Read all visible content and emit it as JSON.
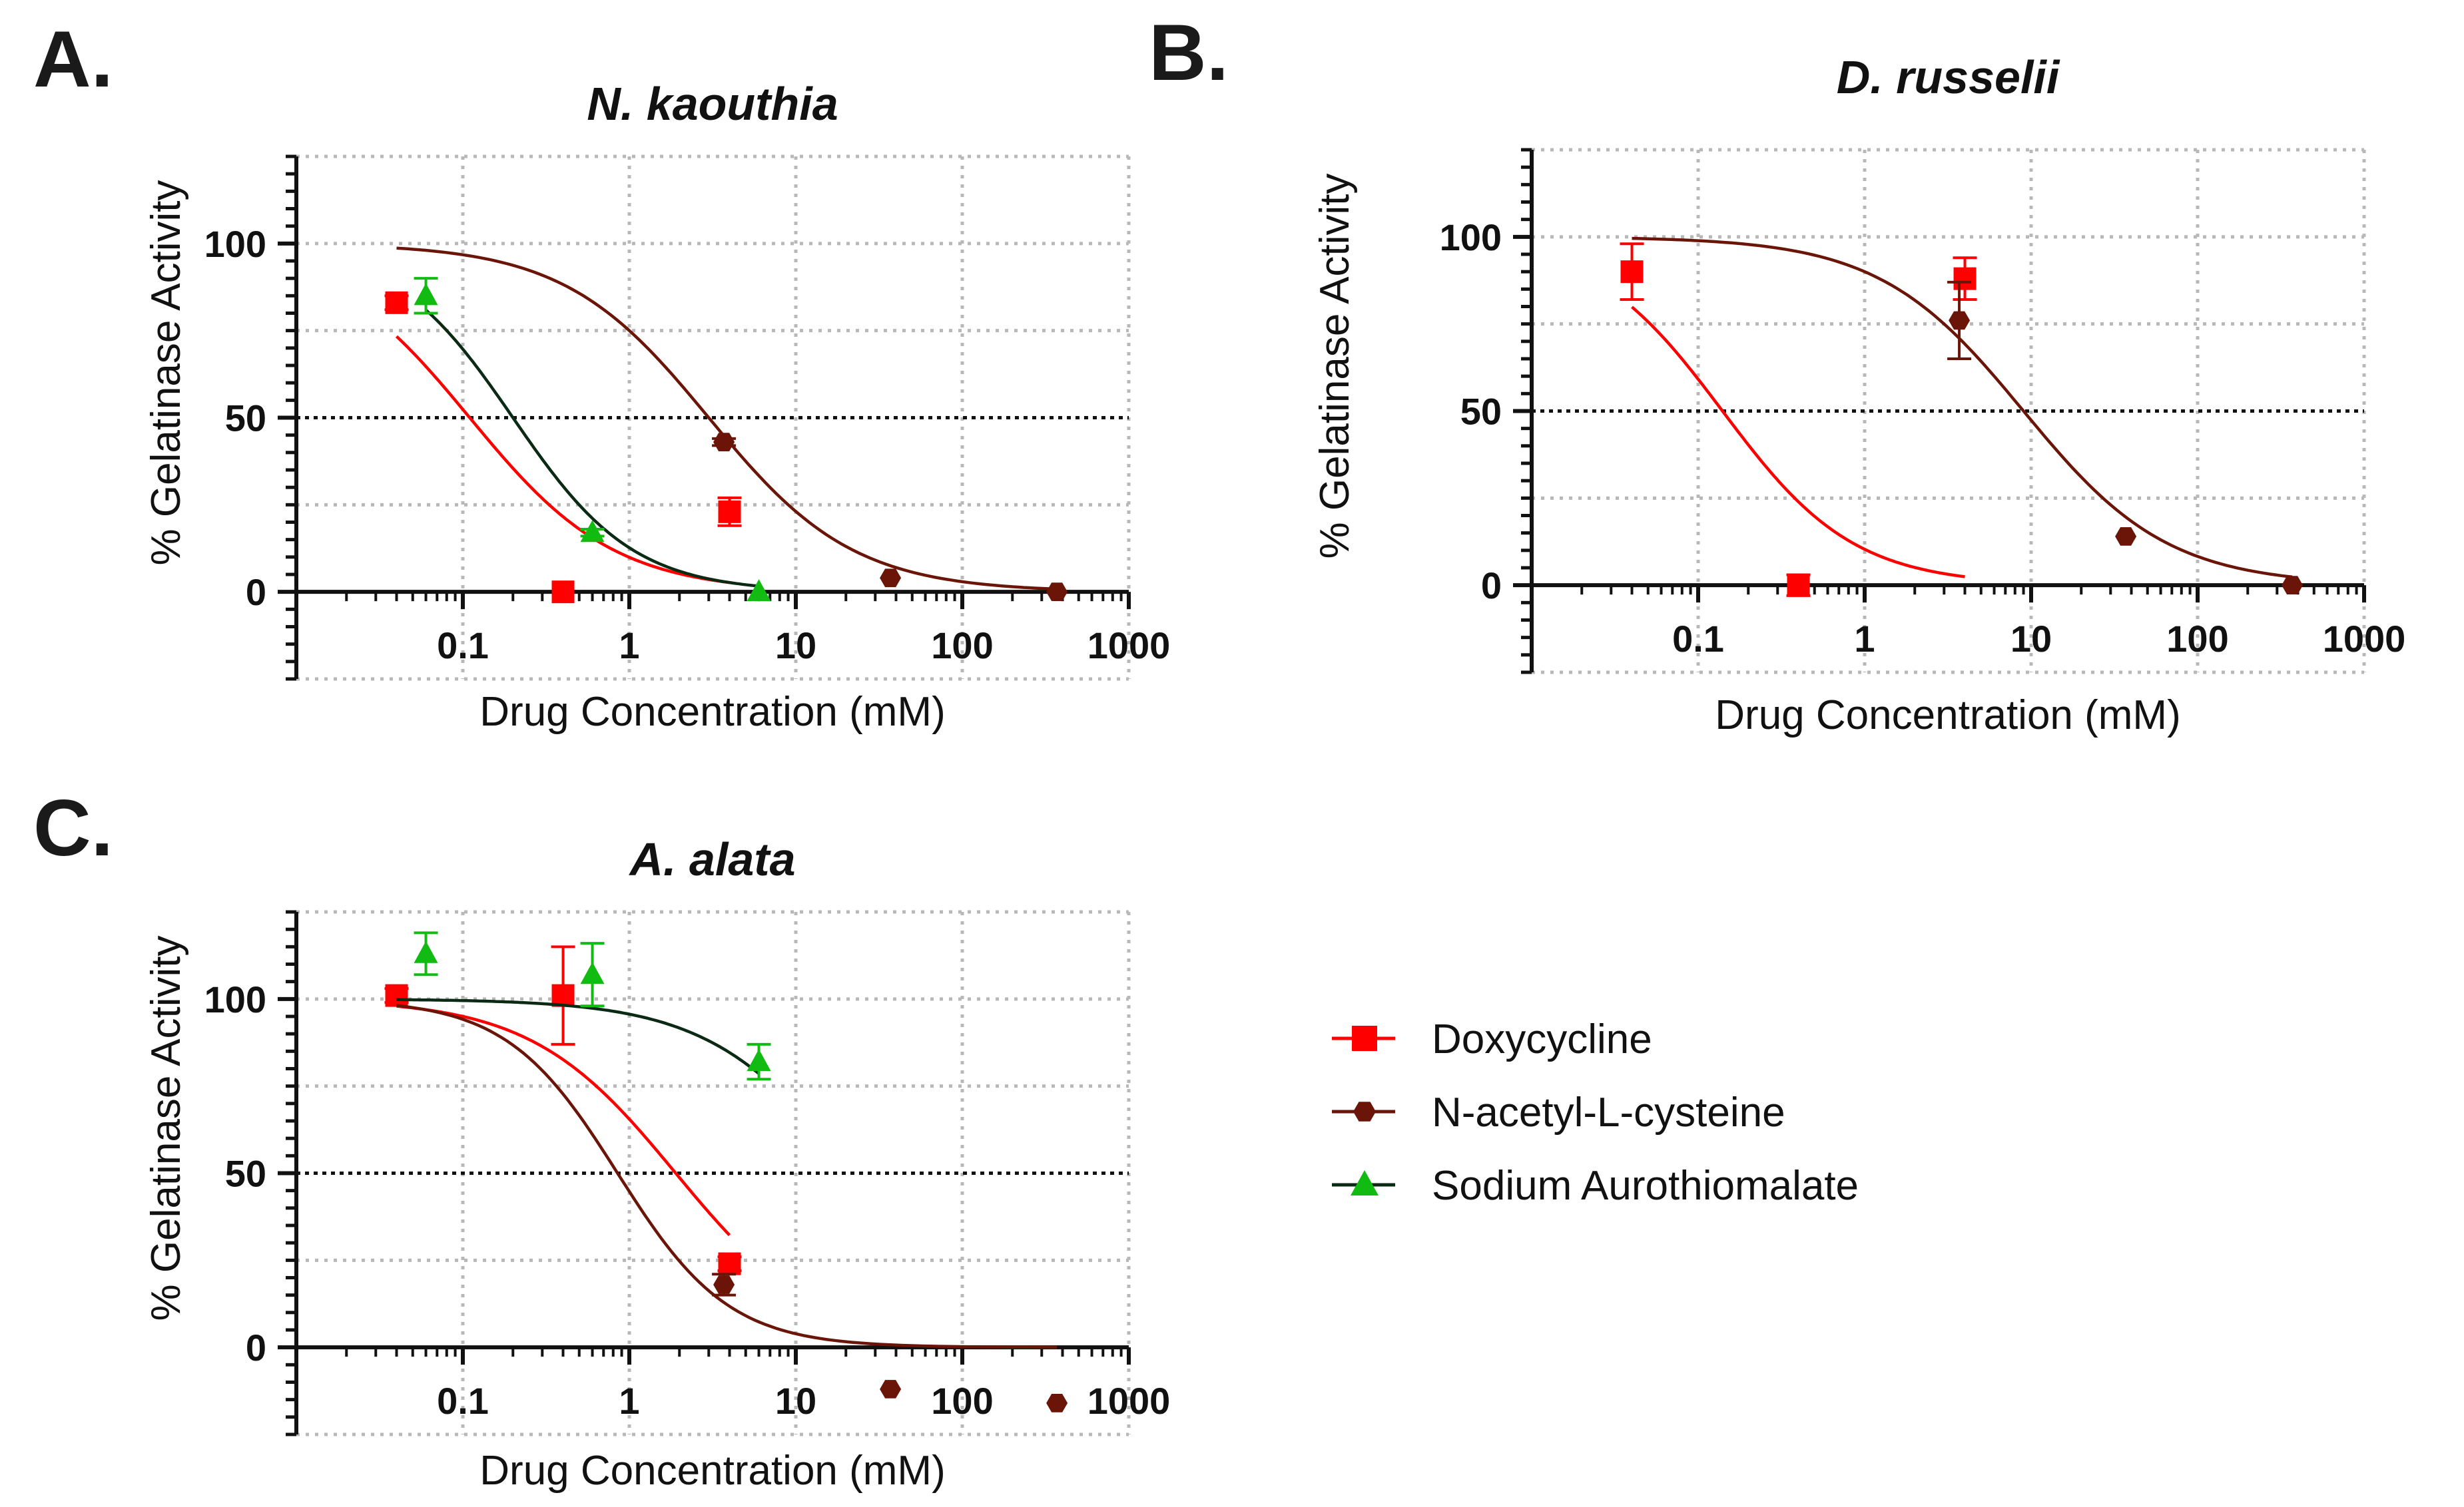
{
  "panels": [
    {
      "letter": "A.",
      "title": "N. kaouthia",
      "xlabel": "Drug Concentration (mM)",
      "ylabel": "% Gelatinase Activity"
    },
    {
      "letter": "B.",
      "title": "D. russelii",
      "xlabel": "Drug Concentration (mM)",
      "ylabel": "% Gelatinase Activity"
    },
    {
      "letter": "C.",
      "title": "A. alata",
      "xlabel": "Drug Concentration (mM)",
      "ylabel": "% Gelatinase Activity"
    }
  ],
  "legend": [
    {
      "label": "Doxycycline",
      "color": "#ff0000",
      "marker": "square"
    },
    {
      "label": "N-acetyl-L-cysteine",
      "color": "#6b1408",
      "marker": "hexagon"
    },
    {
      "label": "Sodium Aurothiomalate",
      "color": "#11bb11",
      "marker": "triangle"
    }
  ],
  "chart_data": [
    {
      "type": "scatter",
      "panel": "A.",
      "title": "N. kaouthia",
      "xlabel": "Drug Concentration (mM)",
      "ylabel": "% Gelatinase Activity",
      "xscale": "log",
      "xlim": [
        0.01,
        1000
      ],
      "ylim": [
        -25,
        125
      ],
      "xticks": [
        "0.1",
        "1",
        "10",
        "100",
        "1000"
      ],
      "yticks": [
        "0",
        "50",
        "100"
      ],
      "reference_line_y": 50,
      "series": [
        {
          "name": "Doxycycline",
          "color": "#ff0000",
          "curve_color": "#ff0000",
          "marker": "square",
          "points": [
            {
              "x": 0.04,
              "y": 83,
              "err": 2
            },
            {
              "x": 0.4,
              "y": 0,
              "err": 0
            },
            {
              "x": 4,
              "y": 23,
              "err": 4
            }
          ],
          "curve": {
            "ic50": 0.11,
            "hill": 1.0,
            "top": 100,
            "bottom": 0,
            "x_start": 0.04,
            "x_end": 4
          }
        },
        {
          "name": "N-acetyl-L-cysteine",
          "color": "#6b1408",
          "curve_color": "#6b1408",
          "marker": "hexagon",
          "points": [
            {
              "x": 3.7,
              "y": 43,
              "err": 1
            },
            {
              "x": 37,
              "y": 4,
              "err": 0
            },
            {
              "x": 370,
              "y": 0,
              "err": 0
            }
          ],
          "curve": {
            "ic50": 3.0,
            "hill": 1.0,
            "top": 100,
            "bottom": 0,
            "x_start": 0.04,
            "x_end": 370
          }
        },
        {
          "name": "Sodium Aurothiomalate",
          "color": "#11bb11",
          "curve_color": "#0b2a14",
          "marker": "triangle",
          "points": [
            {
              "x": 0.06,
              "y": 85,
              "err": 5
            },
            {
              "x": 0.6,
              "y": 17,
              "err": 1
            },
            {
              "x": 6,
              "y": 0,
              "err": 0
            }
          ],
          "curve": {
            "ic50": 0.2,
            "hill": 1.2,
            "top": 100,
            "bottom": 0,
            "x_start": 0.06,
            "x_end": 6
          }
        }
      ]
    },
    {
      "type": "scatter",
      "panel": "B.",
      "title": "D. russelii",
      "xlabel": "Drug Concentration (mM)",
      "ylabel": "% Gelatinase Activity",
      "xscale": "log",
      "xlim": [
        0.01,
        1000
      ],
      "ylim": [
        -25,
        125
      ],
      "xticks": [
        "0.1",
        "1",
        "10",
        "100",
        "1000"
      ],
      "yticks": [
        "0",
        "50",
        "100"
      ],
      "reference_line_y": 50,
      "series": [
        {
          "name": "Doxycycline",
          "color": "#ff0000",
          "curve_color": "#ff0000",
          "marker": "square",
          "points": [
            {
              "x": 0.04,
              "y": 90,
              "err": 8
            },
            {
              "x": 0.4,
              "y": 0,
              "err": 3
            },
            {
              "x": 4,
              "y": 88,
              "err": 6
            }
          ],
          "curve": {
            "ic50": 0.14,
            "hill": 1.1,
            "top": 100,
            "bottom": 0,
            "x_start": 0.04,
            "x_end": 4
          }
        },
        {
          "name": "N-acetyl-L-cysteine",
          "color": "#6b1408",
          "curve_color": "#6b1408",
          "marker": "hexagon",
          "points": [
            {
              "x": 3.7,
              "y": 76,
              "err": 11
            },
            {
              "x": 37,
              "y": 14,
              "err": 0
            },
            {
              "x": 370,
              "y": 0,
              "err": 0
            }
          ],
          "curve": {
            "ic50": 9.0,
            "hill": 1.0,
            "top": 100,
            "bottom": 0,
            "x_start": 0.04,
            "x_end": 370
          }
        }
      ]
    },
    {
      "type": "scatter",
      "panel": "C.",
      "title": "A. alata",
      "xlabel": "Drug Concentration (mM)",
      "ylabel": "% Gelatinase Activity",
      "xscale": "log",
      "xlim": [
        0.01,
        1000
      ],
      "ylim": [
        -25,
        125
      ],
      "xticks": [
        "0.1",
        "1",
        "10",
        "100",
        "1000"
      ],
      "yticks": [
        "0",
        "50",
        "100"
      ],
      "reference_line_y": 50,
      "series": [
        {
          "name": "Doxycycline",
          "color": "#ff0000",
          "curve_color": "#ff0000",
          "marker": "square",
          "points": [
            {
              "x": 0.04,
              "y": 101,
              "err": 2
            },
            {
              "x": 0.4,
              "y": 101,
              "err": 14
            },
            {
              "x": 4,
              "y": 24,
              "err": 2
            }
          ],
          "curve": {
            "ic50": 1.9,
            "hill": 1.0,
            "top": 100,
            "bottom": 0,
            "x_start": 0.04,
            "x_end": 4
          }
        },
        {
          "name": "N-acetyl-L-cysteine",
          "color": "#6b1408",
          "curve_color": "#6b1408",
          "marker": "hexagon",
          "points": [
            {
              "x": 3.7,
              "y": 18,
              "err": 3
            },
            {
              "x": 37,
              "y": -12,
              "err": 0
            },
            {
              "x": 370,
              "y": -16,
              "err": 0
            }
          ],
          "curve": {
            "ic50": 0.85,
            "hill": 1.3,
            "top": 100,
            "bottom": 0,
            "x_start": 0.04,
            "x_end": 370
          }
        },
        {
          "name": "Sodium Aurothiomalate",
          "color": "#11bb11",
          "curve_color": "#0b2a14",
          "marker": "triangle",
          "points": [
            {
              "x": 0.06,
              "y": 113,
              "err": 6
            },
            {
              "x": 0.6,
              "y": 107,
              "err": 9
            },
            {
              "x": 6,
              "y": 82,
              "err": 5
            }
          ],
          "curve": {
            "ic50": 22,
            "hill": 1.0,
            "top": 100,
            "bottom": 0,
            "x_start": 0.04,
            "x_end": 6
          }
        }
      ]
    }
  ]
}
